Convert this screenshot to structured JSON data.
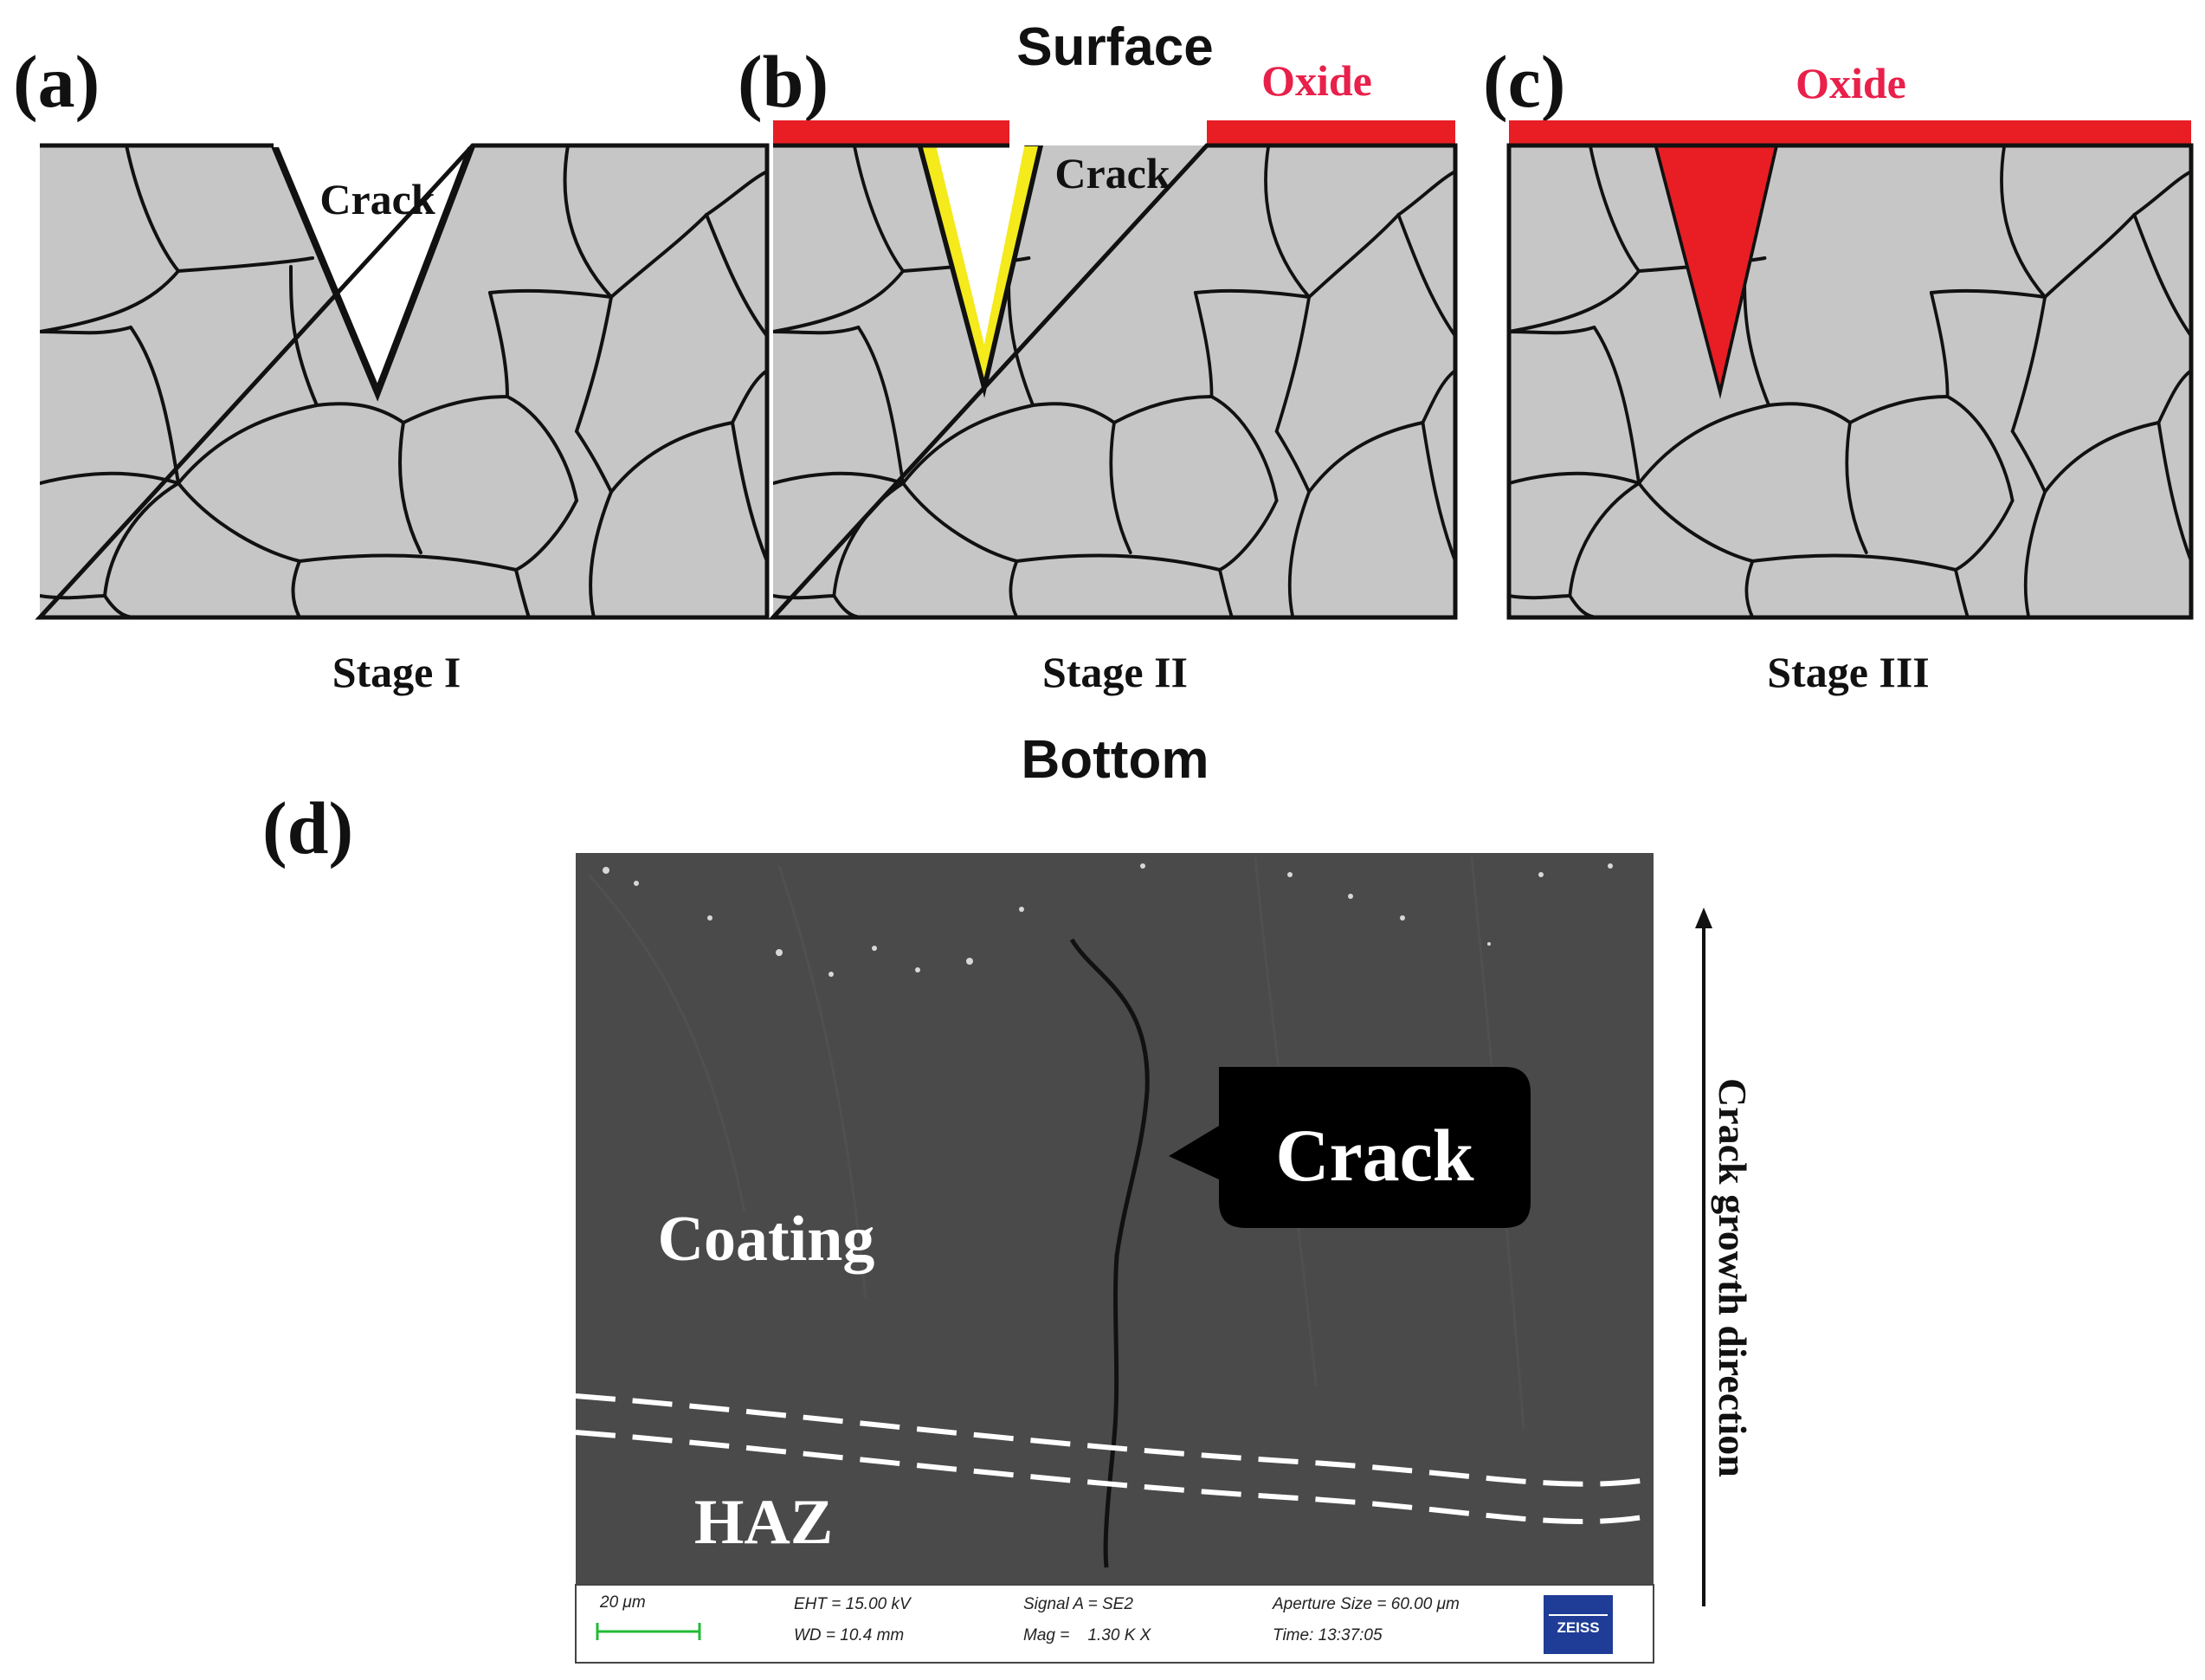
{
  "panels": {
    "a": {
      "letter": "(a)",
      "stage": "Stage I",
      "crack": "Crack"
    },
    "b": {
      "letter": "(b)",
      "stage": "Stage II",
      "crack": "Crack",
      "oxide": "Oxide"
    },
    "c": {
      "letter": "(c)",
      "stage": "Stage III",
      "oxide": "Oxide"
    },
    "d": {
      "letter": "(d)"
    }
  },
  "orientation": {
    "top": "Surface",
    "bottom": "Bottom"
  },
  "micrograph": {
    "coating_label": "Coating",
    "haz_label": "HAZ",
    "crack_callout": "Crack",
    "growth_direction": "Crack growth direction",
    "info_bar": {
      "scale_bar": "20 μm",
      "eht": "EHT = 15.00 kV",
      "wd": "WD = 10.4 mm",
      "signal": "Signal A = SE2",
      "mag": "Mag =    1.30 K X",
      "aperture": "Aperture Size = 60.00 μm",
      "time": "Time: 13:37:05",
      "logo": "ZEISS"
    }
  },
  "colors": {
    "grain": "#c6c6c6",
    "oxide": "#e81e24",
    "oxide_text": "#e8204a",
    "crack_wall_oxide": "#f4ea1c",
    "sem_background": "#4a4a4a",
    "scale_bar": "#22bb33",
    "zeiss_blue": "#1f3d96"
  }
}
